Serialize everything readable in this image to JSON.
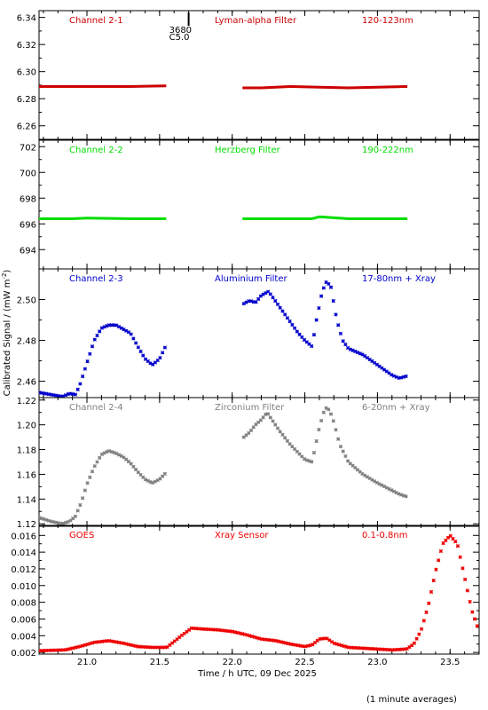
{
  "chart_data": {
    "type": "scatter",
    "marker": "asterisk",
    "xlabel": "Time / h UTC, 09 Dec 2025",
    "ylabel": "Calibrated Signal / (mW m",
    "ylabel_sup": "-2",
    "ylabel_close": ")",
    "footnote": "(1 minute averages)",
    "xlim": [
      20.67,
      23.7
    ],
    "xticks": [
      "21.0",
      "21.5",
      "22.0",
      "22.5",
      "23.0",
      "23.5"
    ],
    "xtick_values": [
      21.0,
      21.5,
      22.0,
      22.5,
      23.0,
      23.5
    ],
    "flare_marker": {
      "x": 21.7,
      "line1": "3680",
      "line2": "C5.0"
    },
    "panels": [
      {
        "channel": "Channel 2-1",
        "filter": "Lyman-alpha Filter",
        "band": "120-123nm",
        "color": "#cc0000",
        "ylim": [
          6.25,
          6.345
        ],
        "yticks": [
          "6.26",
          "6.28",
          "6.30",
          "6.32",
          "6.34"
        ],
        "ytick_values": [
          6.26,
          6.28,
          6.3,
          6.32,
          6.34
        ],
        "segments": [
          {
            "x": [
              20.67,
              21.0,
              21.3,
              21.55
            ],
            "y": [
              6.289,
              6.289,
              6.289,
              6.2895
            ]
          },
          {
            "x": [
              22.08,
              22.2,
              22.4,
              22.6,
              22.8,
              23.0,
              23.2
            ],
            "y": [
              6.288,
              6.288,
              6.289,
              6.2885,
              6.288,
              6.2885,
              6.289
            ]
          }
        ]
      },
      {
        "channel": "Channel 2-2",
        "filter": "Herzberg Filter",
        "band": "190-222nm",
        "color": "#00dd00",
        "ylim": [
          692.5,
          702.5
        ],
        "yticks": [
          "694",
          "696",
          "698",
          "700",
          "702"
        ],
        "ytick_values": [
          694,
          696,
          698,
          700,
          702
        ],
        "segments": [
          {
            "x": [
              20.67,
              20.9,
              21.0,
              21.3,
              21.55
            ],
            "y": [
              696.4,
              696.4,
              696.45,
              696.4,
              696.4
            ]
          },
          {
            "x": [
              22.08,
              22.3,
              22.55,
              22.6,
              22.8,
              23.0,
              23.2
            ],
            "y": [
              696.4,
              696.4,
              696.4,
              696.55,
              696.4,
              696.4,
              696.4
            ]
          }
        ]
      },
      {
        "channel": "Channel 2-3",
        "filter": "Aluminium Filter",
        "band": "17-80nm + Xray",
        "color": "#0000cc",
        "ylim": [
          2.452,
          2.515
        ],
        "yticks": [
          "2.46",
          "2.48",
          "2.50"
        ],
        "ytick_values": [
          2.46,
          2.48,
          2.5
        ],
        "segments": [
          {
            "x": [
              20.67,
              20.75,
              20.83,
              20.88,
              20.92,
              20.95,
              21.0,
              21.05,
              21.1,
              21.15,
              21.2,
              21.25,
              21.3,
              21.35,
              21.4,
              21.45,
              21.5,
              21.55
            ],
            "y": [
              2.4545,
              2.4535,
              2.4525,
              2.454,
              2.4535,
              2.458,
              2.469,
              2.48,
              2.486,
              2.4875,
              2.4875,
              2.4855,
              2.4835,
              2.477,
              2.471,
              2.468,
              2.471,
              2.4785
            ]
          },
          {
            "x": [
              22.08,
              22.12,
              22.16,
              22.2,
              22.25,
              22.3,
              22.35,
              22.4,
              22.45,
              22.5,
              22.55,
              22.58,
              22.62,
              22.65,
              22.68,
              22.72,
              22.76,
              22.8,
              22.9,
              23.0,
              23.1,
              23.15,
              23.2
            ],
            "y": [
              2.498,
              2.4995,
              2.4985,
              2.502,
              2.504,
              2.499,
              2.494,
              2.489,
              2.484,
              2.48,
              2.477,
              2.49,
              2.504,
              2.509,
              2.506,
              2.49,
              2.48,
              2.476,
              2.473,
              2.468,
              2.463,
              2.4615,
              2.4625
            ]
          }
        ]
      },
      {
        "channel": "Channel 2-4",
        "filter": "Zirconium Filter",
        "band": "6-20nm + Xray",
        "color": "#808080",
        "ylim": [
          1.118,
          1.222
        ],
        "yticks": [
          "1.12",
          "1.14",
          "1.16",
          "1.18",
          "1.20",
          "1.22"
        ],
        "ytick_values": [
          1.12,
          1.14,
          1.16,
          1.18,
          1.2,
          1.22
        ],
        "segments": [
          {
            "x": [
              20.67,
              20.75,
              20.83,
              20.88,
              20.92,
              20.96,
              21.0,
              21.05,
              21.1,
              21.15,
              21.2,
              21.25,
              21.3,
              21.35,
              21.4,
              21.45,
              21.5,
              21.55
            ],
            "y": [
              1.125,
              1.122,
              1.12,
              1.122,
              1.126,
              1.137,
              1.152,
              1.166,
              1.176,
              1.179,
              1.177,
              1.174,
              1.169,
              1.162,
              1.156,
              1.153,
              1.156,
              1.162
            ]
          },
          {
            "x": [
              22.08,
              22.12,
              22.16,
              22.2,
              22.24,
              22.28,
              22.32,
              22.36,
              22.4,
              22.45,
              22.5,
              22.55,
              22.6,
              22.64,
              22.67,
              22.7,
              22.74,
              22.8,
              22.9,
              23.0,
              23.1,
              23.15,
              23.2
            ],
            "y": [
              1.19,
              1.194,
              1.2,
              1.204,
              1.21,
              1.203,
              1.196,
              1.19,
              1.184,
              1.178,
              1.172,
              1.17,
              1.198,
              1.214,
              1.212,
              1.202,
              1.184,
              1.17,
              1.16,
              1.153,
              1.147,
              1.144,
              1.142
            ]
          }
        ]
      },
      {
        "channel": "GOES",
        "filter": "Xray Sensor",
        "band": "0.1-0.8nm",
        "color": "#ee0000",
        "ylim": [
          0.0018,
          0.0172
        ],
        "yticks": [
          "0.002",
          "0.004",
          "0.006",
          "0.008",
          "0.010",
          "0.012",
          "0.014",
          "0.016"
        ],
        "ytick_values": [
          0.002,
          0.004,
          0.006,
          0.008,
          0.01,
          0.012,
          0.014,
          0.016
        ],
        "segments": [
          {
            "x": [
              20.67,
              20.85,
              20.95,
              21.05,
              21.15,
              21.25,
              21.35,
              21.45,
              21.55,
              21.65,
              21.72,
              21.8,
              21.9,
              22.0,
              22.1,
              22.2,
              22.3,
              22.4,
              22.5,
              22.55,
              22.6,
              22.65,
              22.7,
              22.8,
              22.9,
              23.0,
              23.1,
              23.2,
              23.25,
              23.3,
              23.35,
              23.4,
              23.45,
              23.5,
              23.55,
              23.6,
              23.65,
              23.7
            ],
            "y": [
              0.0022,
              0.0023,
              0.0027,
              0.0032,
              0.0034,
              0.0031,
              0.0027,
              0.0026,
              0.0026,
              0.004,
              0.0049,
              0.0048,
              0.0047,
              0.0045,
              0.0041,
              0.0036,
              0.0034,
              0.003,
              0.0027,
              0.0029,
              0.0036,
              0.0037,
              0.0031,
              0.0026,
              0.0025,
              0.0024,
              0.0023,
              0.0024,
              0.003,
              0.0046,
              0.0076,
              0.0117,
              0.015,
              0.016,
              0.015,
              0.011,
              0.007,
              0.0045
            ]
          }
        ]
      }
    ]
  }
}
